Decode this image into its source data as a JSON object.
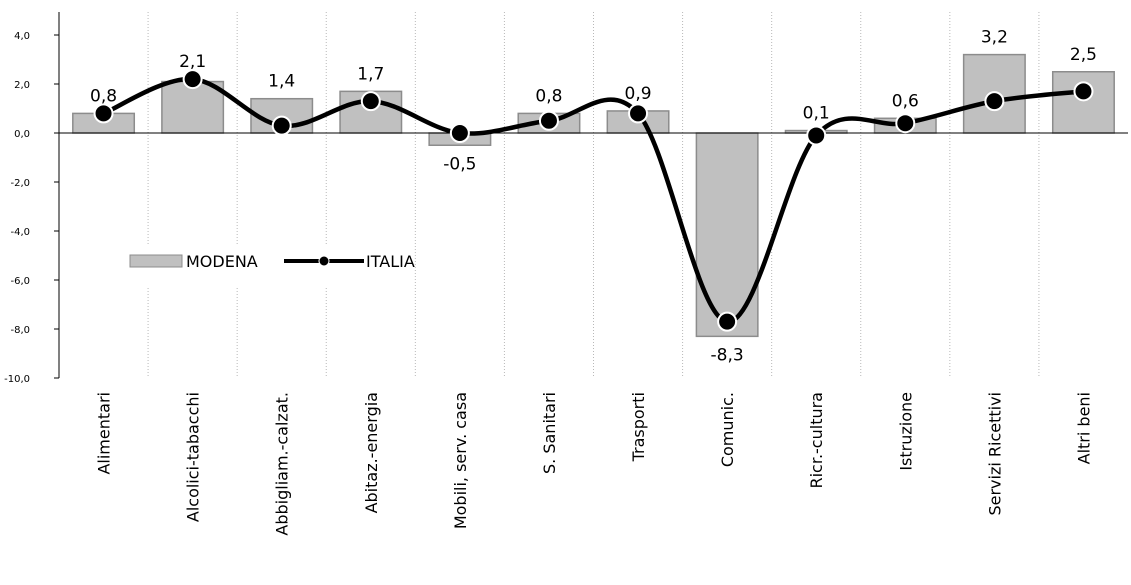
{
  "chart_data": {
    "type": "bar",
    "categories": [
      "Alimentari",
      "Alcolici-tabacchi",
      "Abbigliam.-calzat.",
      "Abitaz.-energia",
      "Mobili, serv. casa",
      "S. Sanitari",
      "Trasporti",
      "Comunic.",
      "Ricr.-cultura",
      "Istruzione",
      "Servizi Ricettivi",
      "Altri beni"
    ],
    "series": [
      {
        "name": "MODENA",
        "kind": "bar",
        "values": [
          0.8,
          2.1,
          1.4,
          1.7,
          -0.5,
          0.8,
          0.9,
          -8.3,
          0.1,
          0.6,
          3.2,
          2.5
        ],
        "labels": [
          "0,8",
          "2,1",
          "1,4",
          "1,7",
          "-0,5",
          "0,8",
          "0,9",
          "-8,3",
          "0,1",
          "0,6",
          "3,2",
          "2,5"
        ],
        "color": "#c0c0c0"
      },
      {
        "name": "ITALIA",
        "kind": "line",
        "values": [
          0.8,
          2.2,
          0.3,
          1.3,
          0.0,
          0.5,
          0.8,
          -7.7,
          -0.1,
          0.4,
          1.3,
          1.7
        ],
        "color": "#000000"
      }
    ],
    "ylim": [
      -10,
      4
    ],
    "yticks": [
      4,
      2,
      0,
      -2,
      -4,
      -6,
      -8,
      -10
    ],
    "ytick_labels": [
      "4,0",
      "2,0",
      "0,0",
      "-2,0",
      "-4,0",
      "-6,0",
      "-8,0",
      "-10,0"
    ],
    "grid": "vertical dotted separators",
    "legend": "middle-left",
    "title": "",
    "xlabel": "",
    "ylabel": ""
  }
}
